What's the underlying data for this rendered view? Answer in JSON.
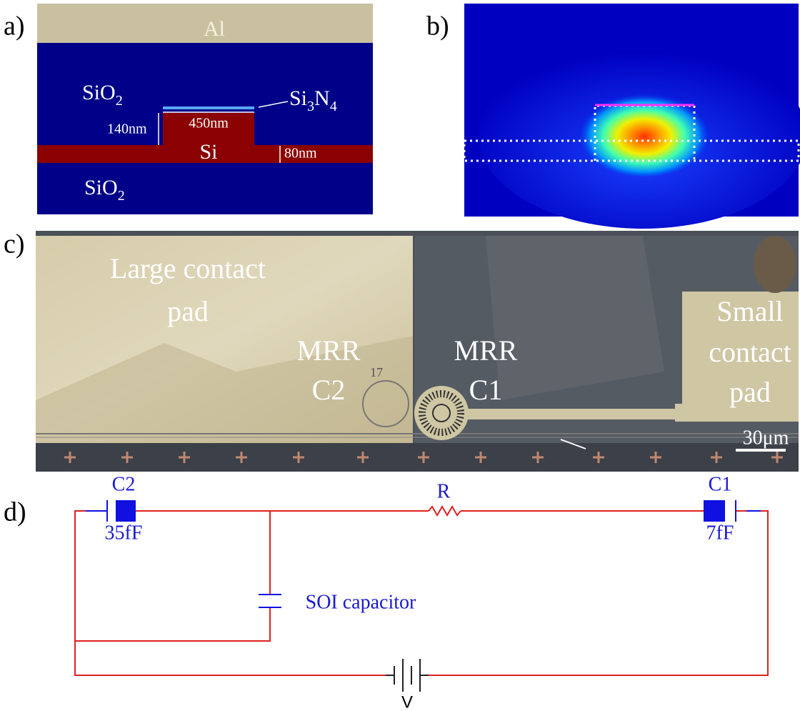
{
  "panel_a": {
    "label": "a)",
    "al": "Al",
    "sio2_top": {
      "base": "SiO",
      "sub": "2"
    },
    "si3n4": {
      "parts": [
        "Si",
        "3",
        "N",
        "4"
      ]
    },
    "height": "140nm",
    "width": "450nm",
    "si": "Si",
    "slab": "80nm",
    "sio2_bottom": {
      "base": "SiO",
      "sub": "2"
    }
  },
  "panel_b": {
    "label": "b)"
  },
  "panel_c": {
    "label": "c)",
    "large_pad": [
      "Large contact",
      "pad"
    ],
    "mrr_c2": [
      "MRR",
      "C2"
    ],
    "mrr_c1": [
      "MRR",
      "C1"
    ],
    "small_pad": [
      "Small",
      "contact",
      "pad"
    ],
    "device_number": "17",
    "scale_bar": "30μm"
  },
  "panel_d": {
    "label": "d)",
    "c2": {
      "name": "C2",
      "value": "35fF"
    },
    "resistor": "R",
    "c1": {
      "name": "C1",
      "value": "7fF"
    },
    "soi": "SOI capacitor",
    "source": "V"
  }
}
